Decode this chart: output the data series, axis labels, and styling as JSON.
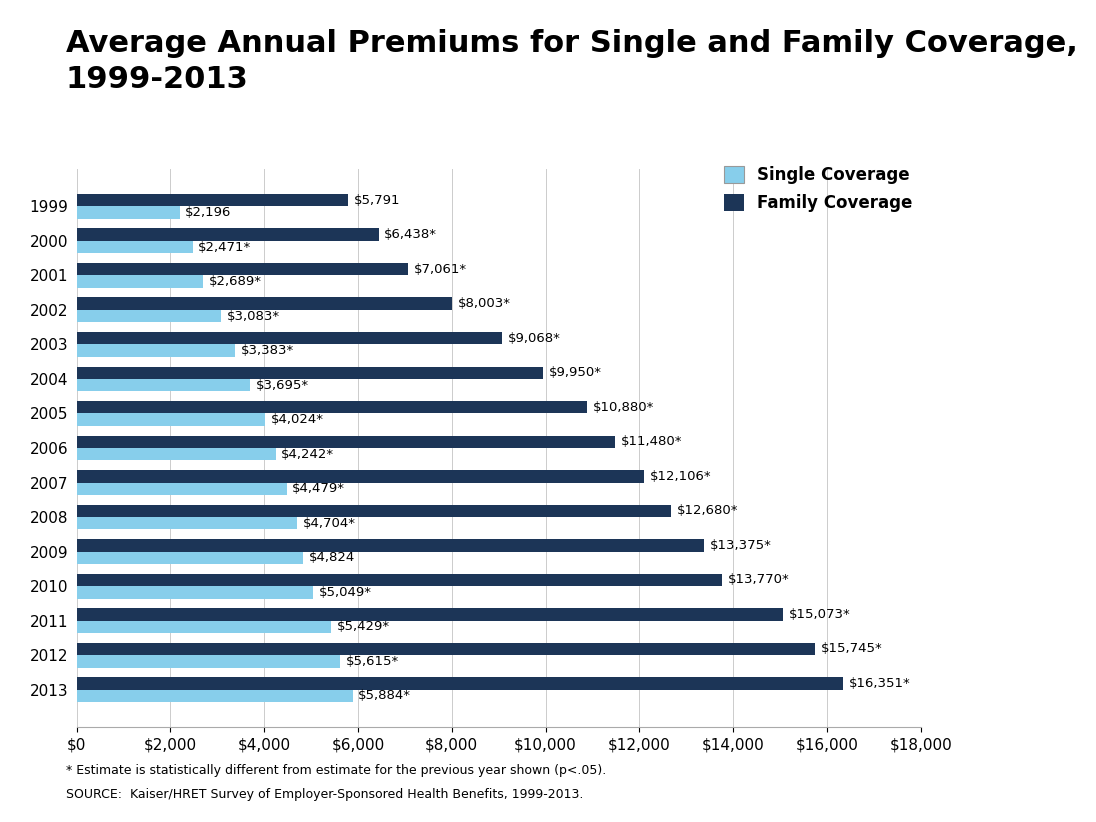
{
  "title": "Average Annual Premiums for Single and Family Coverage,\n1999-2013",
  "years": [
    "1999",
    "2000",
    "2001",
    "2002",
    "2003",
    "2004",
    "2005",
    "2006",
    "2007",
    "2008",
    "2009",
    "2010",
    "2011",
    "2012",
    "2013"
  ],
  "single": [
    2196,
    2471,
    2689,
    3083,
    3383,
    3695,
    4024,
    4242,
    4479,
    4704,
    4824,
    5049,
    5429,
    5615,
    5884
  ],
  "family": [
    5791,
    6438,
    7061,
    8003,
    9068,
    9950,
    10880,
    11480,
    12106,
    12680,
    13375,
    13770,
    15073,
    15745,
    16351
  ],
  "single_labels": [
    "$2,196",
    "$2,471*",
    "$2,689*",
    "$3,083*",
    "$3,383*",
    "$3,695*",
    "$4,024*",
    "$4,242*",
    "$4,479*",
    "$4,704*",
    "$4,824",
    "$5,049*",
    "$5,429*",
    "$5,615*",
    "$5,884*"
  ],
  "family_labels": [
    "$5,791",
    "$6,438*",
    "$7,061*",
    "$8,003*",
    "$9,068*",
    "$9,950*",
    "$10,880*",
    "$11,480*",
    "$12,106*",
    "$12,680*",
    "$13,375*",
    "$13,770*",
    "$15,073*",
    "$15,745*",
    "$16,351*"
  ],
  "single_color": "#87ceeb",
  "family_color": "#1c3557",
  "background_color": "#ffffff",
  "xlim": [
    0,
    18000
  ],
  "xticks": [
    0,
    2000,
    4000,
    6000,
    8000,
    10000,
    12000,
    14000,
    16000,
    18000
  ],
  "legend_single": "Single Coverage",
  "legend_family": "Family Coverage",
  "footnote1": "* Estimate is statistically different from estimate for the previous year shown (p<.05).",
  "footnote2": "SOURCE:  Kaiser/HRET Survey of Employer-Sponsored Health Benefits, 1999-2013.",
  "title_fontsize": 22,
  "axis_fontsize": 11,
  "label_fontsize": 9.5,
  "legend_fontsize": 12,
  "bar_height": 0.36
}
